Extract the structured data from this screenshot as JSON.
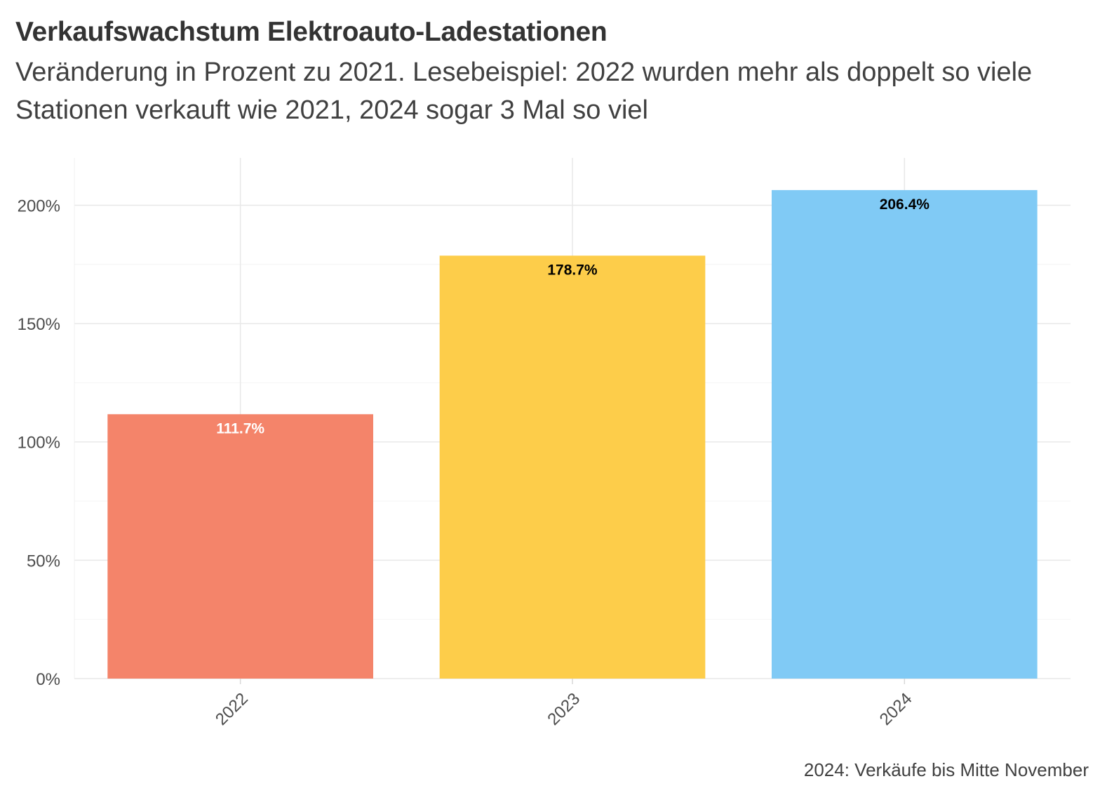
{
  "chart_data": {
    "type": "bar",
    "title": "Verkaufswachstum Elektroauto-Ladestationen",
    "subtitle": "Veränderung in Prozent zu 2021. Lesebeispiel: 2022 wurden mehr als doppelt so viele Stationen verkauft wie 2021, 2024 sogar 3 Mal so viel",
    "caption": "2024: Verkäufe bis Mitte November",
    "categories": [
      "2022",
      "2023",
      "2024"
    ],
    "values": [
      111.7,
      178.7,
      206.4
    ],
    "data_labels": [
      "111.7%",
      "178.7%",
      "206.4%"
    ],
    "bar_colors": [
      "#F4846A",
      "#FDCD4A",
      "#80CAF5"
    ],
    "label_colors": [
      "#ffffff",
      "#000000",
      "#000000"
    ],
    "y_ticks": [
      0,
      50,
      100,
      150,
      200
    ],
    "y_tick_labels": [
      "0%",
      "50%",
      "100%",
      "150%",
      "200%"
    ],
    "ylim": [
      0,
      220
    ],
    "xlabel": "",
    "ylabel": "",
    "x_tick_rotation_deg": 45,
    "grid": true,
    "legend": "none"
  }
}
